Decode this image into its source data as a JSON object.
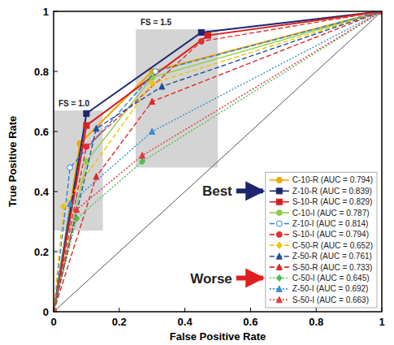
{
  "chart_data": {
    "type": "line",
    "x_label": "False Positive Rate",
    "y_label": "True Positive Rate",
    "xlim": [
      0,
      1
    ],
    "ylim": [
      0,
      1
    ],
    "xticks": [
      0,
      0.2,
      0.4,
      0.6,
      0.8,
      1
    ],
    "yticks": [
      0,
      0.2,
      0.4,
      0.6,
      0.8,
      1
    ],
    "grid": false,
    "legend": "lower right",
    "series": [
      {
        "name": "C-10-R (AUC = 0.794)",
        "color": "#f0a800",
        "line_style": "solid",
        "marker": "circle",
        "x": [
          0,
          0.08,
          0.3,
          1
        ],
        "values": [
          0,
          0.56,
          0.8,
          1
        ]
      },
      {
        "name": "Z-10-R (AUC = 0.839)",
        "color": "#1c2670",
        "line_style": "solid",
        "marker": "square",
        "x": [
          0,
          0.1,
          0.45,
          1
        ],
        "values": [
          0,
          0.66,
          0.93,
          1
        ]
      },
      {
        "name": "S-10-R (AUC = 0.829)",
        "color": "#d61e1e",
        "line_style": "solid",
        "marker": "square",
        "x": [
          0,
          0.1,
          0.47,
          1
        ],
        "values": [
          0,
          0.62,
          0.92,
          1
        ]
      },
      {
        "name": "C-10-I (AUC = 0.787)",
        "color": "#8ccf4a",
        "line_style": "solid",
        "marker": "circle",
        "x": [
          0,
          0.1,
          0.3,
          1
        ],
        "values": [
          0,
          0.5,
          0.78,
          1
        ]
      },
      {
        "name": "Z-10-I (AUC = 0.814)",
        "color": "#2a7fd4",
        "line_style": "dashed",
        "marker": "open-circle",
        "x": [
          0,
          0.05,
          0.31,
          1
        ],
        "values": [
          0,
          0.48,
          0.8,
          1
        ]
      },
      {
        "name": "S-10-I (AUC = 0.794)",
        "color": "#e03030",
        "line_style": "dashed",
        "marker": "circle",
        "x": [
          0,
          0.1,
          0.45,
          1
        ],
        "values": [
          0,
          0.55,
          0.9,
          1
        ]
      },
      {
        "name": "C-50-R (AUC = 0.652)",
        "color": "#f2c200",
        "line_style": "dashed",
        "marker": "diamond",
        "x": [
          0,
          0.03,
          0.3,
          1
        ],
        "values": [
          0,
          0.35,
          0.76,
          1
        ]
      },
      {
        "name": "Z-50-R (AUC = 0.761)",
        "color": "#1f4fa0",
        "line_style": "dashed",
        "marker": "triangle",
        "x": [
          0,
          0.13,
          0.33,
          1
        ],
        "values": [
          0,
          0.61,
          0.75,
          1
        ]
      },
      {
        "name": "S-50-R (AUC = 0.733)",
        "color": "#e02828",
        "line_style": "dashed",
        "marker": "triangle",
        "x": [
          0,
          0.13,
          0.3,
          1
        ],
        "values": [
          0,
          0.45,
          0.7,
          1
        ]
      },
      {
        "name": "C-50-I (AUC = 0.645)",
        "color": "#4fbf4f",
        "line_style": "dotted",
        "marker": "diamond",
        "x": [
          0,
          0.07,
          0.27,
          1
        ],
        "values": [
          0,
          0.31,
          0.5,
          1
        ]
      },
      {
        "name": "Z-50-I (AUC = 0.692)",
        "color": "#3a8fd0",
        "line_style": "dotted",
        "marker": "triangle",
        "x": [
          0,
          0.05,
          0.3,
          1
        ],
        "values": [
          0,
          0.36,
          0.6,
          1
        ]
      },
      {
        "name": "S-50-I (AUC = 0.663)",
        "color": "#e03a3a",
        "line_style": "dotted",
        "marker": "triangle",
        "x": [
          0,
          0.07,
          0.27,
          1
        ],
        "values": [
          0,
          0.34,
          0.52,
          1
        ]
      }
    ],
    "regions": [
      {
        "text": "FS = 1.0",
        "x": [
          0,
          0.15
        ],
        "y": [
          0.27,
          0.67
        ]
      },
      {
        "text": "FS = 1.5",
        "x": [
          0.25,
          0.5
        ],
        "y": [
          0.48,
          0.94
        ]
      }
    ],
    "annotations": [
      {
        "text": "Best",
        "series": "Z-10-R (AUC = 0.839)"
      },
      {
        "text": "Worse",
        "series": "C-50-I (AUC = 0.645)"
      }
    ]
  }
}
